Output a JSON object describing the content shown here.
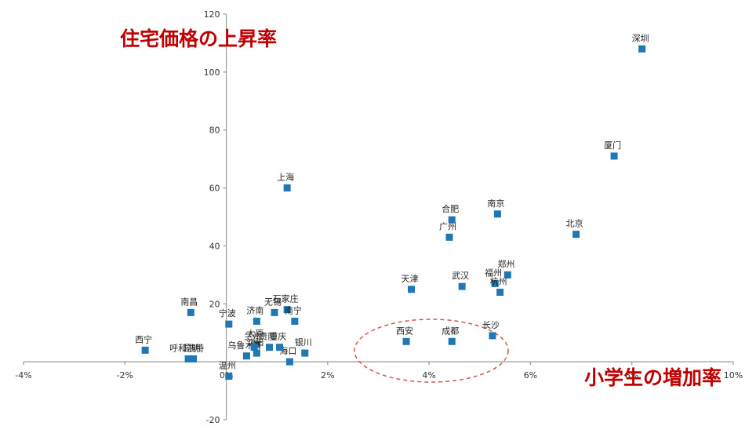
{
  "chart_data": {
    "type": "scatter",
    "x_unit": "%",
    "xlim": [
      -4,
      10
    ],
    "ylim": [
      -20,
      120
    ],
    "x_ticks": [
      "-4%",
      "-2%",
      "0%",
      "2%",
      "4%",
      "6%",
      "8%",
      "10%"
    ],
    "y_ticks": [
      "-20",
      "20",
      "40",
      "60",
      "80",
      "100",
      "120"
    ],
    "annotations": {
      "y_axis_caption": "住宅価格の上昇率",
      "x_axis_caption": "小学生の増加率"
    },
    "colors": {
      "marker": "#1f77b4",
      "annotation": "#c00000",
      "axis": "#9a9a9a"
    },
    "points": [
      {
        "label": "深圳",
        "x": 8.2,
        "y": 108
      },
      {
        "label": "厦门",
        "x": 7.65,
        "y": 71
      },
      {
        "label": "北京",
        "x": 6.9,
        "y": 44
      },
      {
        "label": "南京",
        "x": 5.35,
        "y": 51
      },
      {
        "label": "合肥",
        "x": 4.45,
        "y": 49
      },
      {
        "label": "广州",
        "x": 4.4,
        "y": 43
      },
      {
        "label": "上海",
        "x": 1.2,
        "y": 60
      },
      {
        "label": "郑州",
        "x": 5.55,
        "y": 30
      },
      {
        "label": "福州",
        "x": 5.3,
        "y": 27
      },
      {
        "label": "杭州",
        "x": 5.4,
        "y": 24
      },
      {
        "label": "武汉",
        "x": 4.65,
        "y": 26
      },
      {
        "label": "天津",
        "x": 3.65,
        "y": 25
      },
      {
        "label": "石家庄",
        "x": 1.2,
        "y": 18
      },
      {
        "label": "无锡",
        "x": 0.95,
        "y": 17
      },
      {
        "label": "济南",
        "x": 0.6,
        "y": 14
      },
      {
        "label": "南宁",
        "x": 1.35,
        "y": 14
      },
      {
        "label": "长沙",
        "x": 5.25,
        "y": 9
      },
      {
        "label": "成都",
        "x": 4.45,
        "y": 7
      },
      {
        "label": "西安",
        "x": 3.55,
        "y": 7
      },
      {
        "label": "银川",
        "x": 1.55,
        "y": 3
      },
      {
        "label": "海口",
        "x": 1.25,
        "y": 0
      },
      {
        "label": "重庆",
        "x": 1.05,
        "y": 5
      },
      {
        "label": "太原",
        "x": 0.6,
        "y": 6
      },
      {
        "label": "沈阳",
        "x": 0.6,
        "y": 3
      },
      {
        "label": "乌鲁木齐",
        "x": 0.4,
        "y": 2
      },
      {
        "label": "温州",
        "x": 0.05,
        "y": -5
      },
      {
        "label": "贵阳",
        "x": 0.85,
        "y": 5
      },
      {
        "label": "兰州",
        "x": 0.55,
        "y": 5
      },
      {
        "label": "宁波",
        "x": 0.05,
        "y": 13
      },
      {
        "label": "南昌",
        "x": -0.7,
        "y": 17
      },
      {
        "label": "呼和浩特",
        "x": -0.75,
        "y": 1
      },
      {
        "label": "昆明",
        "x": -0.65,
        "y": 1
      },
      {
        "label": "西宁",
        "x": -1.6,
        "y": 4
      }
    ]
  }
}
